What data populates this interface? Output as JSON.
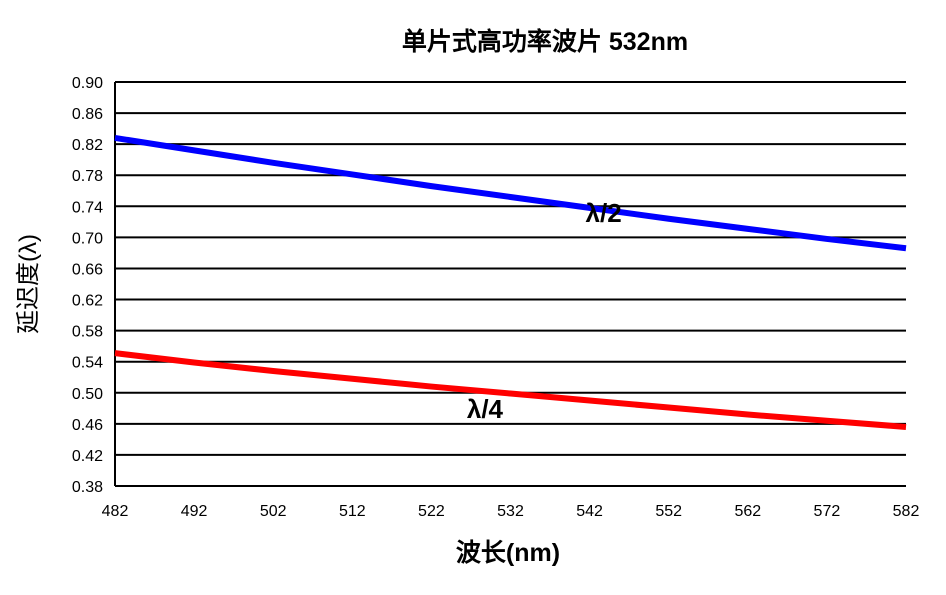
{
  "chart_data": {
    "type": "line",
    "title": "单片式高功率波片 532nm",
    "xlabel": "波长(nm)",
    "ylabel": "延迟度(λ)",
    "xlim": [
      482,
      582
    ],
    "ylim": [
      0.38,
      0.9
    ],
    "x_ticks": [
      482,
      492,
      502,
      512,
      522,
      532,
      542,
      552,
      562,
      572,
      582
    ],
    "y_ticks": [
      "0.38",
      "0.42",
      "0.46",
      "0.50",
      "0.54",
      "0.58",
      "0.62",
      "0.66",
      "0.70",
      "0.74",
      "0.78",
      "0.82",
      "0.86",
      "0.90"
    ],
    "grid": true,
    "x": [
      482,
      492,
      502,
      512,
      522,
      532,
      542,
      552,
      562,
      572,
      582
    ],
    "series": [
      {
        "name": "λ/2",
        "color": "#0000ff",
        "values": [
          0.828,
          0.812,
          0.796,
          0.781,
          0.766,
          0.752,
          0.738,
          0.724,
          0.711,
          0.698,
          0.686
        ],
        "label_at": [
          542,
          0.735
        ]
      },
      {
        "name": "λ/4",
        "color": "#ff0000",
        "values": [
          0.551,
          0.539,
          0.528,
          0.518,
          0.508,
          0.499,
          0.49,
          0.481,
          0.472,
          0.464,
          0.456
        ],
        "label_at": [
          527,
          0.483
        ]
      }
    ]
  }
}
